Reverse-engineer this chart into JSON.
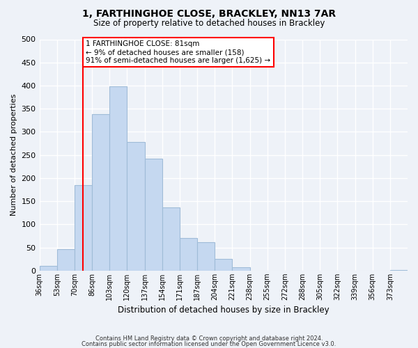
{
  "title": "1, FARTHINGHOE CLOSE, BRACKLEY, NN13 7AR",
  "subtitle": "Size of property relative to detached houses in Brackley",
  "xlabel": "Distribution of detached houses by size in Brackley",
  "ylabel": "Number of detached properties",
  "bar_labels": [
    "36sqm",
    "53sqm",
    "70sqm",
    "86sqm",
    "103sqm",
    "120sqm",
    "137sqm",
    "154sqm",
    "171sqm",
    "187sqm",
    "204sqm",
    "221sqm",
    "238sqm",
    "255sqm",
    "272sqm",
    "288sqm",
    "305sqm",
    "322sqm",
    "339sqm",
    "356sqm",
    "373sqm"
  ],
  "bar_values": [
    10,
    47,
    185,
    338,
    398,
    278,
    242,
    137,
    70,
    62,
    26,
    8,
    0,
    0,
    0,
    0,
    0,
    0,
    0,
    0,
    2
  ],
  "bar_color": "#c5d8f0",
  "bar_edge_color": "#a0bcd8",
  "vline_x": 2.5,
  "vline_color": "red",
  "annotation_text": "1 FARTHINGHOE CLOSE: 81sqm\n← 9% of detached houses are smaller (158)\n91% of semi-detached houses are larger (1,625) →",
  "annotation_box_color": "white",
  "annotation_box_edge_color": "red",
  "ylim": [
    0,
    500
  ],
  "yticks": [
    0,
    50,
    100,
    150,
    200,
    250,
    300,
    350,
    400,
    450,
    500
  ],
  "footer_line1": "Contains HM Land Registry data © Crown copyright and database right 2024.",
  "footer_line2": "Contains public sector information licensed under the Open Government Licence v3.0.",
  "background_color": "#eef2f8",
  "grid_color": "#ffffff",
  "title_fontsize": 10,
  "subtitle_fontsize": 8.5,
  "ylabel_fontsize": 8,
  "xlabel_fontsize": 8.5,
  "tick_fontsize": 7,
  "annotation_fontsize": 7.5,
  "footer_fontsize": 6
}
